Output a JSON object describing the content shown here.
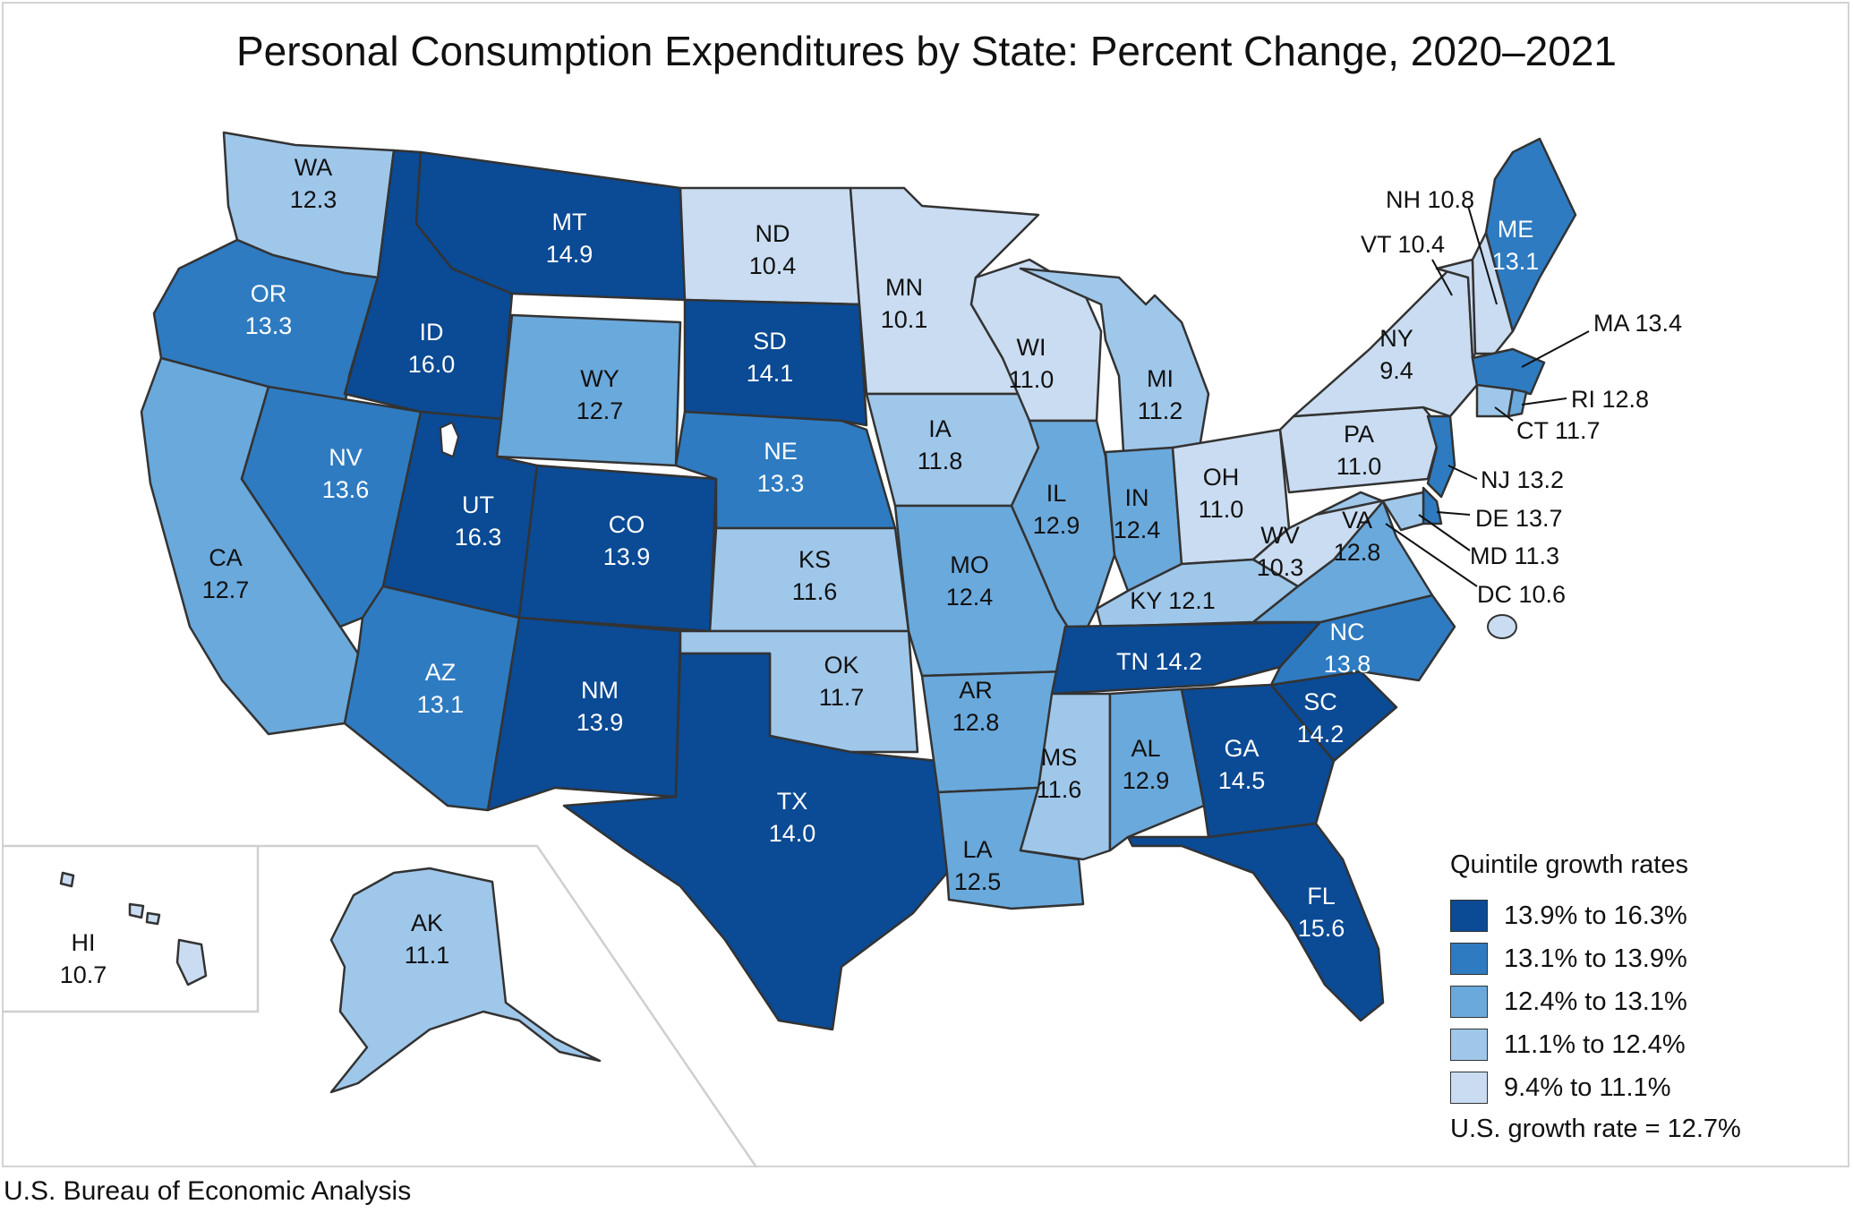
{
  "title": "Personal Consumption Expenditures by State: Percent Change, 2020–2021",
  "source": "U.S. Bureau of Economic Analysis",
  "legend": {
    "title": "Quintile growth rates",
    "bins": [
      {
        "label": "13.9% to 16.3%",
        "color": "#0b4a94"
      },
      {
        "label": "13.1% to 13.9%",
        "color": "#2e7bc1"
      },
      {
        "label": "12.4% to 13.1%",
        "color": "#6aa9dc"
      },
      {
        "label": "11.1% to 12.4%",
        "color": "#9fc7ea"
      },
      {
        "label": "9.4% to 11.1%",
        "color": "#c9dcf1"
      }
    ],
    "note": "U.S. growth rate = 12.7%"
  },
  "states": {
    "WA": {
      "abbr": "WA",
      "value": "12.3"
    },
    "OR": {
      "abbr": "OR",
      "value": "13.3"
    },
    "CA": {
      "abbr": "CA",
      "value": "12.7"
    },
    "ID": {
      "abbr": "ID",
      "value": "16.0"
    },
    "NV": {
      "abbr": "NV",
      "value": "13.6"
    },
    "MT": {
      "abbr": "MT",
      "value": "14.9"
    },
    "WY": {
      "abbr": "WY",
      "value": "12.7"
    },
    "UT": {
      "abbr": "UT",
      "value": "16.3"
    },
    "AZ": {
      "abbr": "AZ",
      "value": "13.1"
    },
    "CO": {
      "abbr": "CO",
      "value": "13.9"
    },
    "NM": {
      "abbr": "NM",
      "value": "13.9"
    },
    "ND": {
      "abbr": "ND",
      "value": "10.4"
    },
    "SD": {
      "abbr": "SD",
      "value": "14.1"
    },
    "NE": {
      "abbr": "NE",
      "value": "13.3"
    },
    "KS": {
      "abbr": "KS",
      "value": "11.6"
    },
    "OK": {
      "abbr": "OK",
      "value": "11.7"
    },
    "TX": {
      "abbr": "TX",
      "value": "14.0"
    },
    "MN": {
      "abbr": "MN",
      "value": "10.1"
    },
    "IA": {
      "abbr": "IA",
      "value": "11.8"
    },
    "MO": {
      "abbr": "MO",
      "value": "12.4"
    },
    "AR": {
      "abbr": "AR",
      "value": "12.8"
    },
    "LA": {
      "abbr": "LA",
      "value": "12.5"
    },
    "WI": {
      "abbr": "WI",
      "value": "11.0"
    },
    "IL": {
      "abbr": "IL",
      "value": "12.9"
    },
    "MI": {
      "abbr": "MI",
      "value": "11.2"
    },
    "IN": {
      "abbr": "IN",
      "value": "12.4"
    },
    "OH": {
      "abbr": "OH",
      "value": "11.0"
    },
    "KY": {
      "abbr": "KY",
      "value": "12.1"
    },
    "TN": {
      "abbr": "TN",
      "value": "14.2"
    },
    "MS": {
      "abbr": "MS",
      "value": "11.6"
    },
    "AL": {
      "abbr": "AL",
      "value": "12.9"
    },
    "GA": {
      "abbr": "GA",
      "value": "14.5"
    },
    "FL": {
      "abbr": "FL",
      "value": "15.6"
    },
    "SC": {
      "abbr": "SC",
      "value": "14.2"
    },
    "NC": {
      "abbr": "NC",
      "value": "13.8"
    },
    "VA": {
      "abbr": "VA",
      "value": "12.8"
    },
    "WV": {
      "abbr": "WV",
      "value": "10.3"
    },
    "PA": {
      "abbr": "PA",
      "value": "11.0"
    },
    "NY": {
      "abbr": "NY",
      "value": "9.4"
    },
    "ME": {
      "abbr": "ME",
      "value": "13.1"
    },
    "AK": {
      "abbr": "AK",
      "value": "11.1"
    },
    "HI": {
      "abbr": "HI",
      "value": "10.7"
    }
  },
  "callouts": {
    "NH": "NH 10.8",
    "VT": "VT 10.4",
    "MA": "MA 13.4",
    "RI": "RI 12.8",
    "CT": "CT 11.7",
    "NJ": "NJ 13.2",
    "DE": "DE 13.7",
    "MD": "MD 11.3",
    "DC": "DC 10.6"
  }
}
